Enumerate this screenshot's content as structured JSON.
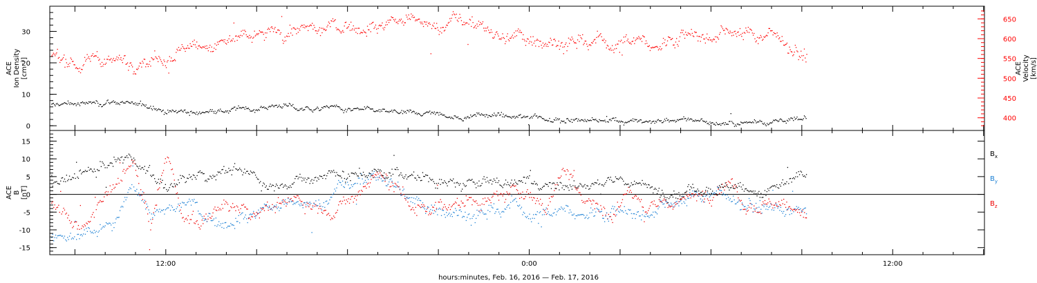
{
  "chart_data": [
    {
      "type": "scatter",
      "panel": "top",
      "ylabel_left": [
        "ACE",
        "Ion Density",
        "[cm⁻³]"
      ],
      "ylabel_right": [
        "ACE",
        "Velocity",
        "[km/s]"
      ],
      "ylim_left": [
        -1.5,
        38
      ],
      "ylim_right": [
        368,
        682
      ],
      "yticks_left": [
        "0",
        "10",
        "20",
        "30"
      ],
      "yticks_right": [
        "400",
        "450",
        "500",
        "550",
        "600",
        "650"
      ],
      "series": [
        {
          "axis": "left",
          "color": "#000000",
          "trend": [
            [
              0,
              6.5
            ],
            [
              2,
              7.5
            ],
            [
              4,
              8.2
            ],
            [
              6,
              6
            ],
            [
              8,
              5
            ],
            [
              10,
              4.8
            ],
            [
              12,
              5.5
            ],
            [
              14,
              6.5
            ],
            [
              16,
              5.5
            ],
            [
              18,
              5
            ],
            [
              20,
              4.5
            ],
            [
              22,
              4
            ],
            [
              24,
              3.5
            ],
            [
              26,
              3.2
            ],
            [
              28,
              3
            ],
            [
              30,
              2.5
            ],
            [
              32,
              2
            ],
            [
              34,
              2.2
            ],
            [
              36,
              1.5
            ],
            [
              38,
              1.8
            ],
            [
              40,
              1.2
            ],
            [
              42,
              0.8
            ],
            [
              44,
              1.5
            ],
            [
              45.8,
              1.5
            ]
          ]
        },
        {
          "axis": "right",
          "color": "#ff0000",
          "trend": [
            [
              0,
              560
            ],
            [
              2,
              545
            ],
            [
              4,
              545
            ],
            [
              6,
              555
            ],
            [
              8,
              575
            ],
            [
              10,
              600
            ],
            [
              12,
              602
            ],
            [
              14,
              620
            ],
            [
              16,
              625
            ],
            [
              18,
              630
            ],
            [
              20,
              640
            ],
            [
              22,
              650
            ],
            [
              24,
              645
            ],
            [
              26,
              632
            ],
            [
              27,
              610
            ],
            [
              29,
              600
            ],
            [
              31,
              598
            ],
            [
              33,
              595
            ],
            [
              35,
              590
            ],
            [
              37,
              595
            ],
            [
              39,
              615
            ],
            [
              41,
              620
            ],
            [
              43,
              610
            ],
            [
              44,
              612
            ],
            [
              45,
              575
            ],
            [
              45.8,
              560
            ]
          ]
        }
      ]
    },
    {
      "type": "scatter",
      "panel": "bottom",
      "ylabel_left": [
        "ACE",
        "B",
        "[nT]"
      ],
      "ylim": [
        -17,
        18
      ],
      "yticks": [
        "-15",
        "-10",
        "-5",
        "0",
        "5",
        "10",
        "15"
      ],
      "series": [
        {
          "name": "Bx",
          "color": "#000000",
          "trend": [
            [
              0,
              2
            ],
            [
              3,
              7
            ],
            [
              5,
              10
            ],
            [
              7,
              2
            ],
            [
              9,
              5
            ],
            [
              11,
              7
            ],
            [
              13,
              3
            ],
            [
              15,
              5
            ],
            [
              17,
              6
            ],
            [
              19,
              5.5
            ],
            [
              21,
              6
            ],
            [
              23,
              4
            ],
            [
              25,
              3.5
            ],
            [
              27,
              4
            ],
            [
              29,
              4.5
            ],
            [
              31,
              3
            ],
            [
              33,
              2.5
            ],
            [
              35,
              3.5
            ],
            [
              37,
              1
            ],
            [
              39,
              2.5
            ],
            [
              41,
              2
            ],
            [
              43,
              2
            ],
            [
              45.8,
              5
            ]
          ]
        },
        {
          "name": "By",
          "color": "#1a7fd4",
          "trend": [
            [
              0,
              -12
            ],
            [
              2,
              -12
            ],
            [
              4,
              -8
            ],
            [
              5,
              5
            ],
            [
              6,
              -6
            ],
            [
              7,
              -5
            ],
            [
              8,
              -2
            ],
            [
              10,
              -8
            ],
            [
              12,
              -5
            ],
            [
              14,
              -3
            ],
            [
              16,
              -1
            ],
            [
              18,
              2
            ],
            [
              19.5,
              5
            ],
            [
              21,
              3
            ],
            [
              22,
              -3
            ],
            [
              24,
              -4
            ],
            [
              26,
              -5
            ],
            [
              28,
              -3
            ],
            [
              30,
              -6
            ],
            [
              32,
              -4
            ],
            [
              34,
              -5
            ],
            [
              36,
              -4
            ],
            [
              38,
              -2
            ],
            [
              40,
              1
            ],
            [
              42,
              -2
            ],
            [
              44,
              -4
            ],
            [
              45.8,
              -5
            ]
          ]
        },
        {
          "name": "Bz",
          "color": "#ee0000",
          "trend": [
            [
              0,
              -3
            ],
            [
              2,
              -10
            ],
            [
              3,
              -3
            ],
            [
              5,
              8
            ],
            [
              6,
              -10
            ],
            [
              7,
              10
            ],
            [
              8,
              -6
            ],
            [
              9,
              -8
            ],
            [
              10,
              -4
            ],
            [
              12,
              -5
            ],
            [
              14,
              -3
            ],
            [
              16,
              -2
            ],
            [
              17,
              -4
            ],
            [
              19,
              3
            ],
            [
              20,
              6
            ],
            [
              21,
              2
            ],
            [
              22,
              -5
            ],
            [
              24,
              -3
            ],
            [
              26,
              -2
            ],
            [
              28,
              2
            ],
            [
              30,
              -3
            ],
            [
              31,
              8
            ],
            [
              32,
              2
            ],
            [
              33,
              -2
            ],
            [
              34,
              -6
            ],
            [
              35,
              2
            ],
            [
              36,
              -5
            ],
            [
              38,
              -2
            ],
            [
              40,
              1
            ],
            [
              41,
              6
            ],
            [
              42,
              -2
            ],
            [
              44,
              -3
            ],
            [
              45.8,
              -3
            ]
          ]
        }
      ]
    }
  ],
  "xaxis": {
    "label": "hours:minutes, Feb. 16, 2016 — Feb. 17, 2016",
    "tick_labels": [
      {
        "hours": 3,
        "text": "12:00"
      },
      {
        "hours": 15,
        "text": "0:00"
      },
      {
        "hours": 27,
        "text": "12:00"
      }
    ],
    "start_hour": -0.83,
    "end_hour": 30.03,
    "data_end_hour": 24.15
  },
  "legend": [
    {
      "name": "Bx",
      "color": "#000000"
    },
    {
      "name": "By",
      "color": "#1a7fd4"
    },
    {
      "name": "Bz",
      "color": "#ee0000"
    }
  ],
  "colors": {
    "density": "#000000",
    "velocity": "#ff0000",
    "bx": "#000000",
    "by": "#1a7fd4",
    "bz": "#ee0000"
  }
}
